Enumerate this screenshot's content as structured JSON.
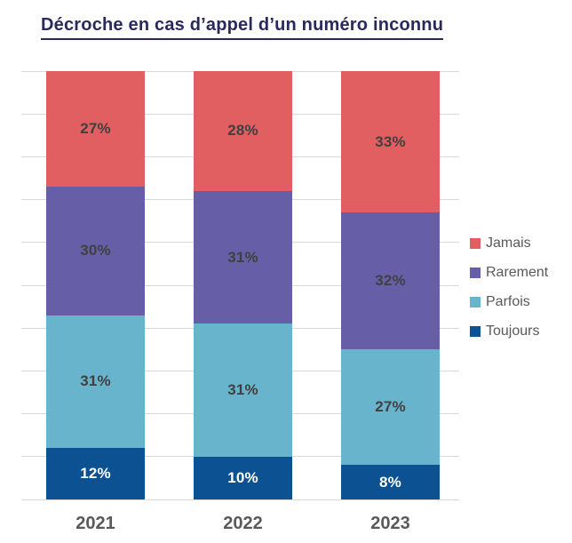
{
  "title": "Décroche en cas d’appel d’un numéro inconnu",
  "chart_data": {
    "type": "bar",
    "stacked": true,
    "title": "Décroche en cas d’appel d’un numéro inconnu",
    "categories": [
      "2021",
      "2022",
      "2023"
    ],
    "series": [
      {
        "name": "Toujours",
        "color": "#0C5191",
        "label_color": "#FFFFFF",
        "values": [
          12,
          10,
          8
        ]
      },
      {
        "name": "Parfois",
        "color": "#69B4CD",
        "label_color": "#404040",
        "values": [
          31,
          31,
          27
        ]
      },
      {
        "name": "Rarement",
        "color": "#665FA7",
        "label_color": "#404040",
        "values": [
          30,
          31,
          32
        ]
      },
      {
        "name": "Jamais",
        "color": "#E15F61",
        "label_color": "#404040",
        "values": [
          27,
          28,
          33
        ]
      }
    ],
    "value_suffix": "%",
    "ylim": [
      0,
      100
    ],
    "grid": true,
    "gridline_step_percent": 10,
    "legend_position": "right",
    "legend_order": [
      "Jamais",
      "Rarement",
      "Parfois",
      "Toujours"
    ]
  },
  "colors": {
    "title": "#2A2A5A",
    "gridline": "#D9D9D9",
    "axis_label": "#595959",
    "legend_text": "#595959",
    "background": "#FFFFFF"
  }
}
